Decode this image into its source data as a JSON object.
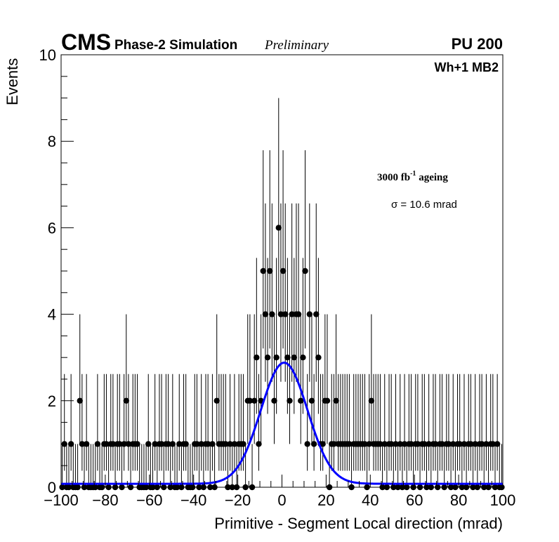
{
  "header": {
    "experiment": "CMS",
    "simulation": "Phase-2 Simulation",
    "status": "Preliminary",
    "pileup": "PU 200"
  },
  "chart_data": {
    "type": "scatter",
    "title": "",
    "xlabel": "Primitive - Segment Local direction (mrad)",
    "ylabel": "Events",
    "xlim": [
      -100,
      100
    ],
    "ylim": [
      0,
      10
    ],
    "x_ticks": [
      "−100",
      "−80",
      "−60",
      "−40",
      "−20",
      "0",
      "20",
      "40",
      "60",
      "80",
      "100"
    ],
    "y_ticks": [
      "0",
      "2",
      "4",
      "6",
      "8",
      "10"
    ],
    "label_station": "Wh+1 MB2",
    "annotation_lumi": "3000 fb",
    "annotation_lumi_sup": "-1",
    "annotation_ageing": "ageing",
    "annotation_sigma": "σ = 10.6 mrad",
    "bin_width": 1,
    "x": [
      -100,
      -99,
      -98,
      -97,
      -96,
      -95,
      -94,
      -93,
      -92,
      -91,
      -90,
      -89,
      -88,
      -87,
      -86,
      -85,
      -84,
      -83,
      -82,
      -81,
      -80,
      -79,
      -78,
      -77,
      -76,
      -75,
      -74,
      -73,
      -72,
      -71,
      -70,
      -69,
      -68,
      -67,
      -66,
      -65,
      -64,
      -63,
      -62,
      -61,
      -60,
      -59,
      -58,
      -57,
      -56,
      -55,
      -54,
      -53,
      -52,
      -51,
      -50,
      -49,
      -48,
      -47,
      -46,
      -45,
      -44,
      -43,
      -42,
      -41,
      -40,
      -39,
      -38,
      -37,
      -36,
      -35,
      -34,
      -33,
      -32,
      -31,
      -30,
      -29,
      -28,
      -27,
      -26,
      -25,
      -24,
      -23,
      -22,
      -21,
      -20,
      -19,
      -18,
      -17,
      -16,
      -15,
      -14,
      -13,
      -12,
      -11,
      -10,
      -9,
      -8,
      -7,
      -6,
      -5,
      -4,
      -3,
      -2,
      -1,
      0,
      1,
      2,
      3,
      4,
      5,
      6,
      7,
      8,
      9,
      10,
      11,
      12,
      13,
      14,
      15,
      16,
      17,
      18,
      19,
      20,
      21,
      22,
      23,
      24,
      25,
      26,
      27,
      28,
      29,
      30,
      31,
      32,
      33,
      34,
      35,
      36,
      37,
      38,
      39,
      40,
      41,
      42,
      43,
      44,
      45,
      46,
      47,
      48,
      49,
      50,
      51,
      52,
      53,
      54,
      55,
      56,
      57,
      58,
      59,
      60,
      61,
      62,
      63,
      64,
      65,
      66,
      67,
      68,
      69,
      70,
      71,
      72,
      73,
      74,
      75,
      76,
      77,
      78,
      79,
      80,
      81,
      82,
      83,
      84,
      85,
      86,
      87,
      88,
      89,
      90,
      91,
      92,
      93,
      94,
      95,
      96,
      97,
      98,
      99
    ],
    "values": [
      0,
      1,
      0,
      0,
      1,
      0,
      0,
      0,
      2,
      1,
      0,
      1,
      0,
      0,
      0,
      0,
      1,
      0,
      0,
      1,
      1,
      0,
      1,
      1,
      0,
      1,
      1,
      0,
      1,
      2,
      1,
      0,
      1,
      1,
      1,
      0,
      0,
      0,
      0,
      1,
      0,
      0,
      1,
      0,
      1,
      1,
      0,
      1,
      1,
      0,
      1,
      0,
      0,
      1,
      0,
      1,
      1,
      0,
      0,
      0,
      1,
      1,
      0,
      1,
      0,
      1,
      1,
      0,
      1,
      0,
      2,
      1,
      1,
      1,
      1,
      0,
      1,
      0,
      1,
      0,
      1,
      1,
      1,
      0,
      2,
      2,
      0,
      2,
      3,
      1,
      2,
      5,
      4,
      3,
      5,
      4,
      2,
      3,
      6,
      4,
      5,
      4,
      3,
      2,
      4,
      3,
      4,
      4,
      2,
      3,
      5,
      1,
      4,
      2,
      1,
      4,
      3,
      1,
      1,
      2,
      2,
      0,
      1,
      1,
      2,
      1,
      1,
      1,
      1,
      1,
      1,
      0,
      1,
      1,
      1,
      1,
      1,
      1,
      0,
      1,
      2,
      1,
      1,
      1,
      1,
      0,
      1,
      0,
      1,
      1,
      0,
      1,
      0,
      1,
      0,
      1,
      0,
      1,
      1,
      0,
      1,
      1,
      0,
      1,
      1,
      0,
      1,
      0,
      1,
      1,
      0,
      1,
      1,
      0,
      1,
      1,
      0,
      1,
      0,
      1,
      1,
      0,
      1,
      0,
      1,
      1,
      0,
      1,
      0,
      1,
      1,
      0,
      1,
      0,
      1,
      1,
      0,
      1,
      0,
      0
    ],
    "fit": {
      "function": "gaussian",
      "color": "#0000ff",
      "amplitude": 2.8,
      "mean": 1.0,
      "sigma": 10.6,
      "baseline": 0.08
    },
    "marker_color": "#000000",
    "errorbar_color": "#000000"
  }
}
